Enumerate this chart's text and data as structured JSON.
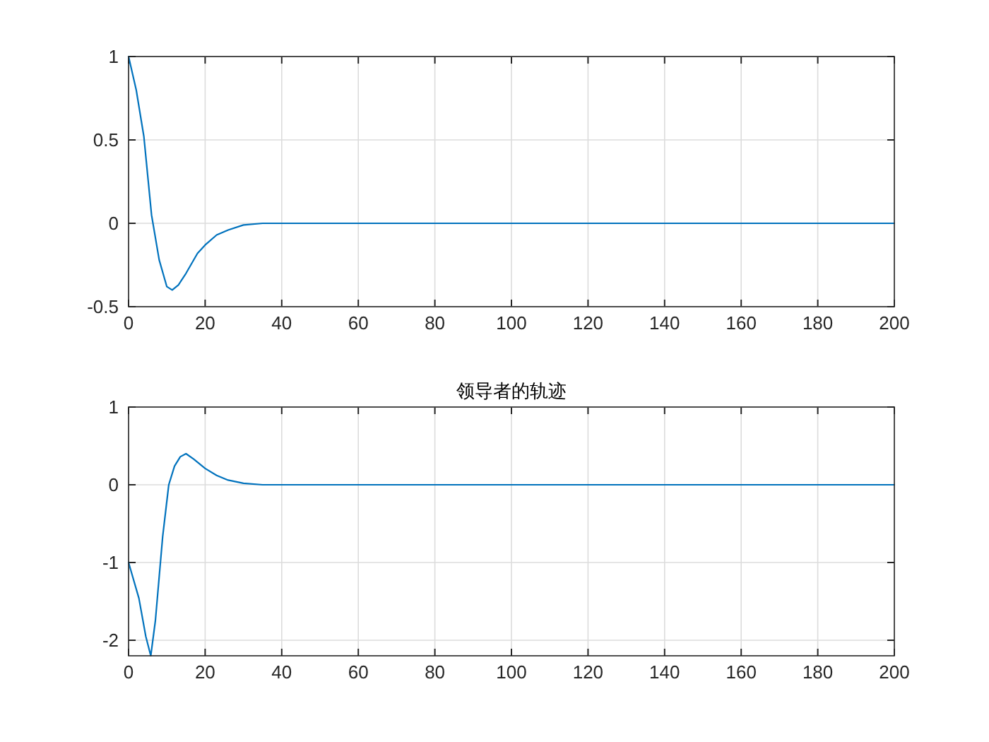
{
  "chart_data": [
    {
      "type": "line",
      "grid": true,
      "xlim": [
        0,
        200
      ],
      "xticks": [
        0,
        20,
        40,
        60,
        80,
        100,
        120,
        140,
        160,
        180,
        200
      ],
      "ylim": [
        -0.5,
        1
      ],
      "yticks": [
        -0.5,
        0,
        0.5,
        1
      ],
      "series": [
        {
          "color": "#0072bd",
          "x": [
            0,
            2,
            4,
            6,
            8,
            10,
            11.4,
            13,
            15,
            18,
            20,
            23,
            26,
            30,
            35,
            40,
            200
          ],
          "values": [
            1,
            0.8,
            0.52,
            0.05,
            -0.22,
            -0.38,
            -0.4,
            -0.37,
            -0.3,
            -0.18,
            -0.13,
            -0.07,
            -0.04,
            -0.01,
            0,
            0,
            0
          ]
        }
      ]
    },
    {
      "type": "line",
      "title": "领导者的轨迹",
      "grid": true,
      "xlim": [
        0,
        200
      ],
      "xticks": [
        0,
        20,
        40,
        60,
        80,
        100,
        120,
        140,
        160,
        180,
        200
      ],
      "ylim": [
        -2.2,
        1
      ],
      "yticks": [
        -2,
        -1,
        0,
        1
      ],
      "series": [
        {
          "color": "#0072bd",
          "x": [
            0,
            2.7,
            4.5,
            5.8,
            7,
            8.9,
            10.5,
            12,
            13.5,
            15,
            17,
            20,
            23,
            26,
            30,
            35,
            40,
            200
          ],
          "values": [
            -1,
            -1.46,
            -1.95,
            -2.2,
            -1.75,
            -0.67,
            0,
            0.24,
            0.36,
            0.4,
            0.33,
            0.21,
            0.12,
            0.06,
            0.02,
            0,
            0,
            0
          ]
        }
      ]
    }
  ]
}
